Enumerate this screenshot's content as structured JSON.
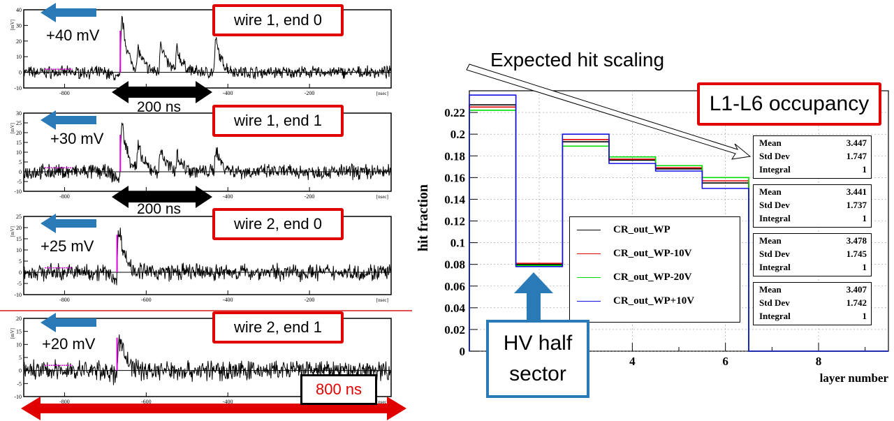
{
  "scopes": [
    {
      "label": "wire 1, end 0",
      "amplitude": "+40 mV",
      "width_label": "200 ns",
      "ymin": -10,
      "ymax": 40,
      "yticks": [
        -10,
        0,
        10,
        20,
        30,
        40
      ],
      "peaks": [
        [
          -660,
          38
        ],
        [
          -620,
          14
        ],
        [
          -565,
          21
        ],
        [
          -525,
          15
        ],
        [
          -430,
          22
        ]
      ]
    },
    {
      "label": "wire 1, end 1",
      "amplitude": "+30 mV",
      "width_label": "200 ns",
      "ymin": -10,
      "ymax": 30,
      "yticks": [
        -10,
        -5,
        0,
        5,
        10,
        15,
        20,
        25,
        30
      ],
      "peaks": [
        [
          -660,
          27
        ],
        [
          -620,
          12
        ],
        [
          -565,
          12
        ],
        [
          -525,
          9
        ],
        [
          -430,
          13
        ]
      ]
    },
    {
      "label": "wire 2, end 0",
      "amplitude": "+25 mV",
      "width_label": "",
      "ymin": -10,
      "ymax": 25,
      "yticks": [
        -10,
        -5,
        0,
        5,
        10,
        15,
        20,
        25
      ],
      "peaks": [
        [
          -668,
          24
        ]
      ]
    },
    {
      "label": "wire 2, end 1",
      "amplitude": "+20 mV",
      "width_label": "",
      "ymin": -10,
      "ymax": 20,
      "yticks": [
        -10,
        -5,
        0,
        5,
        10,
        15,
        20
      ],
      "peaks": [
        [
          -668,
          18
        ]
      ]
    }
  ],
  "scope_axis": {
    "xmin": -900,
    "xmax": 0,
    "xticks": [
      -800,
      -600,
      -400,
      -200
    ],
    "xunit": "[nsec]",
    "yunit": "[mV]"
  },
  "window_label": "800 ns",
  "chart_data": {
    "type": "step",
    "title": "L1-L6 occupancy",
    "annotation": "Expected hit scaling",
    "hv_label_line1": "HV half",
    "hv_label_line2": "sector",
    "xlabel": "layer number",
    "ylabel": "hit fraction",
    "xlim": [
      0.5,
      9.5
    ],
    "ylim": [
      0,
      0.24
    ],
    "xticks": [
      4,
      6,
      8
    ],
    "yticks": [
      "0",
      "0.02",
      "0.04",
      "0.06",
      "0.08",
      "0.1",
      "0.12",
      "0.14",
      "0.16",
      "0.18",
      "0.2",
      "0.22"
    ],
    "series": [
      {
        "name": "CR_out_WP",
        "color": "#000000",
        "values": [
          0.227,
          0.08,
          0.193,
          0.176,
          0.168,
          0.155,
          0,
          0,
          0
        ],
        "stats": {
          "Mean": "3.447",
          "Std Dev": "1.747",
          "Integral": "1"
        }
      },
      {
        "name": "CR_out_WP-10V",
        "color": "#e00000",
        "values": [
          0.225,
          0.081,
          0.195,
          0.177,
          0.169,
          0.157,
          0,
          0,
          0
        ],
        "stats": {
          "Mean": "3.441",
          "Std Dev": "1.737",
          "Integral": "1"
        }
      },
      {
        "name": "CR_out_WP-20V",
        "color": "#00dd00",
        "values": [
          0.222,
          0.079,
          0.189,
          0.179,
          0.171,
          0.16,
          0,
          0,
          0
        ],
        "stats": {
          "Mean": "3.478",
          "Std Dev": "1.745",
          "Integral": "1"
        }
      },
      {
        "name": "CR_out_WP+10V",
        "color": "#1010e0",
        "values": [
          0.236,
          0.078,
          0.2,
          0.173,
          0.166,
          0.15,
          0,
          0,
          0
        ],
        "stats": {
          "Mean": "3.407",
          "Std Dev": "1.742",
          "Integral": "1"
        }
      }
    ]
  }
}
